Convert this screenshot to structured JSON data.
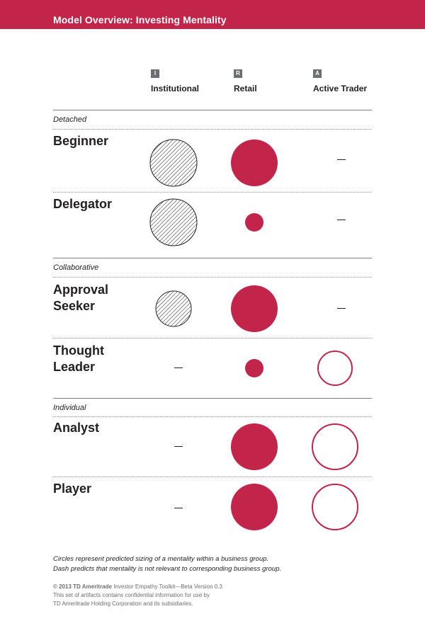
{
  "header": {
    "title": "Model Overview: Investing Mentality",
    "background": "#c3244a"
  },
  "columns": [
    {
      "letter": "I",
      "label": "Institutional"
    },
    {
      "letter": "R",
      "label": "Retail"
    },
    {
      "letter": "A",
      "label": "Active Trader"
    }
  ],
  "legend": {
    "dash": "—",
    "line1": "Circles represent predicted sizing of a mentality within a business group.",
    "line2": "Dash predicts that mentality is not relevant to corresponding business group."
  },
  "colors": {
    "accent": "#c3244a",
    "hatch": "#231f20"
  },
  "chart_data": {
    "type": "table",
    "columns": [
      "Institutional",
      "Retail",
      "Active Trader"
    ],
    "groups": [
      {
        "name": "Detached",
        "rows": [
          {
            "label_lines": [
              "Beginner"
            ],
            "cells": [
              {
                "mark": "hatched",
                "size": "large"
              },
              {
                "mark": "filled",
                "size": "large"
              },
              {
                "mark": "dash"
              }
            ]
          },
          {
            "label_lines": [
              "Delegator"
            ],
            "cells": [
              {
                "mark": "hatched",
                "size": "large"
              },
              {
                "mark": "filled",
                "size": "small"
              },
              {
                "mark": "dash"
              }
            ]
          }
        ]
      },
      {
        "name": "Collaborative",
        "rows": [
          {
            "label_lines": [
              "Approval",
              "Seeker"
            ],
            "cells": [
              {
                "mark": "hatched",
                "size": "medium"
              },
              {
                "mark": "filled",
                "size": "large"
              },
              {
                "mark": "dash"
              }
            ]
          },
          {
            "label_lines": [
              "Thought",
              "Leader"
            ],
            "cells": [
              {
                "mark": "dash"
              },
              {
                "mark": "filled",
                "size": "small"
              },
              {
                "mark": "outline",
                "size": "medium"
              }
            ]
          }
        ]
      },
      {
        "name": "Individual",
        "rows": [
          {
            "label_lines": [
              "Analyst"
            ],
            "cells": [
              {
                "mark": "dash"
              },
              {
                "mark": "filled",
                "size": "large"
              },
              {
                "mark": "outline",
                "size": "large"
              }
            ]
          },
          {
            "label_lines": [
              "Player"
            ],
            "cells": [
              {
                "mark": "dash"
              },
              {
                "mark": "filled",
                "size": "large"
              },
              {
                "mark": "outline",
                "size": "large"
              }
            ]
          }
        ]
      }
    ]
  },
  "footer": {
    "copyright": "© 2013 TD Ameritrade",
    "toolkit": " Investor Empathy Toolkit—Beta Version 0.3",
    "line2": "This set of artifacts contains confidential information for use by",
    "line3": "TD Ameritrade Holding Corporation and its subsidiaries."
  }
}
